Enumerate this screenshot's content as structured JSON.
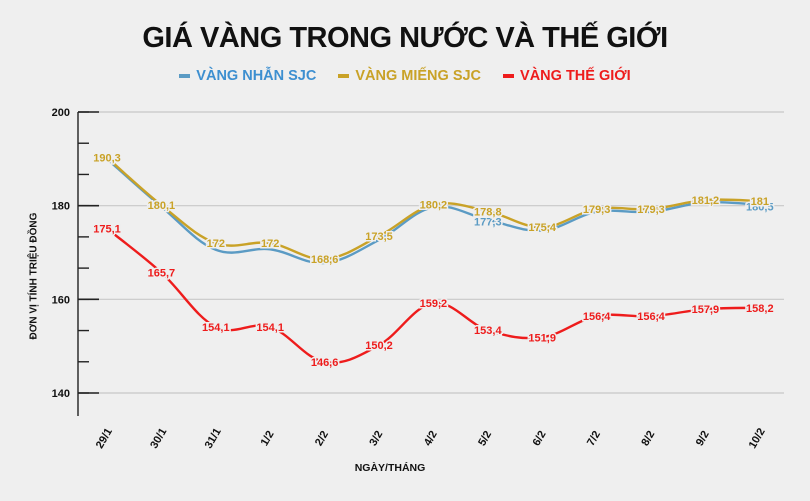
{
  "chart_data": {
    "type": "line",
    "title": "GIÁ VÀNG TRONG NƯỚC VÀ THẾ GIỚI",
    "xlabel": "NGÀY/THÁNG",
    "ylabel": "ĐƠN VỊ TÍNH TRIỆU ĐỒNG",
    "ylim": [
      135,
      200
    ],
    "yticks": [
      140,
      160,
      180,
      200
    ],
    "grid": true,
    "legend_position": "top",
    "categories": [
      "29/1",
      "30/1",
      "31/1",
      "1/2",
      "2/2",
      "3/2",
      "4/2",
      "5/2",
      "6/2",
      "7/2",
      "8/2",
      "9/2",
      "10/2"
    ],
    "series": [
      {
        "name": "VÀNG NHẪN SJC",
        "color": "#5b9bc4",
        "values": [
          190.3,
          180.1,
          170.9,
          171.0,
          168.1,
          173.0,
          180.0,
          177.3,
          175.0,
          179.0,
          179.0,
          181.0,
          180.5
        ],
        "labels": [
          "",
          "",
          "",
          "",
          "",
          "",
          "",
          "177,3",
          "",
          "",
          "",
          "",
          "180,5"
        ]
      },
      {
        "name": "VÀNG MIẾNG SJC",
        "color": "#c9a227",
        "values": [
          190.3,
          180.1,
          172,
          172,
          168.6,
          173.5,
          180.2,
          178.8,
          175.4,
          179.3,
          179.3,
          181.2,
          181
        ],
        "labels": [
          "190,3",
          "180,1",
          "172",
          "172",
          "168,6",
          "173,5",
          "180,2",
          "178,8",
          "175,4",
          "179,3",
          "179,3",
          "181,2",
          "181"
        ]
      },
      {
        "name": "VÀNG THẾ GIỚI",
        "color": "#ee1c1c",
        "values": [
          175.1,
          165.7,
          154.1,
          154.1,
          146.6,
          150.2,
          159.2,
          153.4,
          151.9,
          156.4,
          156.4,
          157.9,
          158.2
        ],
        "labels": [
          "175,1",
          "165,7",
          "154,1",
          "154,1",
          "146,6",
          "150,2",
          "159,2",
          "153,4",
          "151,9",
          "156,4",
          "156,4",
          "157,9",
          "158,2"
        ]
      }
    ]
  },
  "header": {
    "title": "GIÁ VÀNG TRONG NƯỚC VÀ THẾ GIỚI"
  },
  "legend": [
    {
      "label": "VÀNG NHẪN SJC",
      "color": "#5b9bc4"
    },
    {
      "label": "VÀNG MIẾNG SJC",
      "color": "#c9a227"
    },
    {
      "label": "VÀNG THẾ GIỚI",
      "color": "#ee1c1c"
    }
  ],
  "axes": {
    "x_title": "NGÀY/THÁNG",
    "y_title": "ĐƠN VỊ TÍNH TRIỆU ĐỒNG"
  }
}
